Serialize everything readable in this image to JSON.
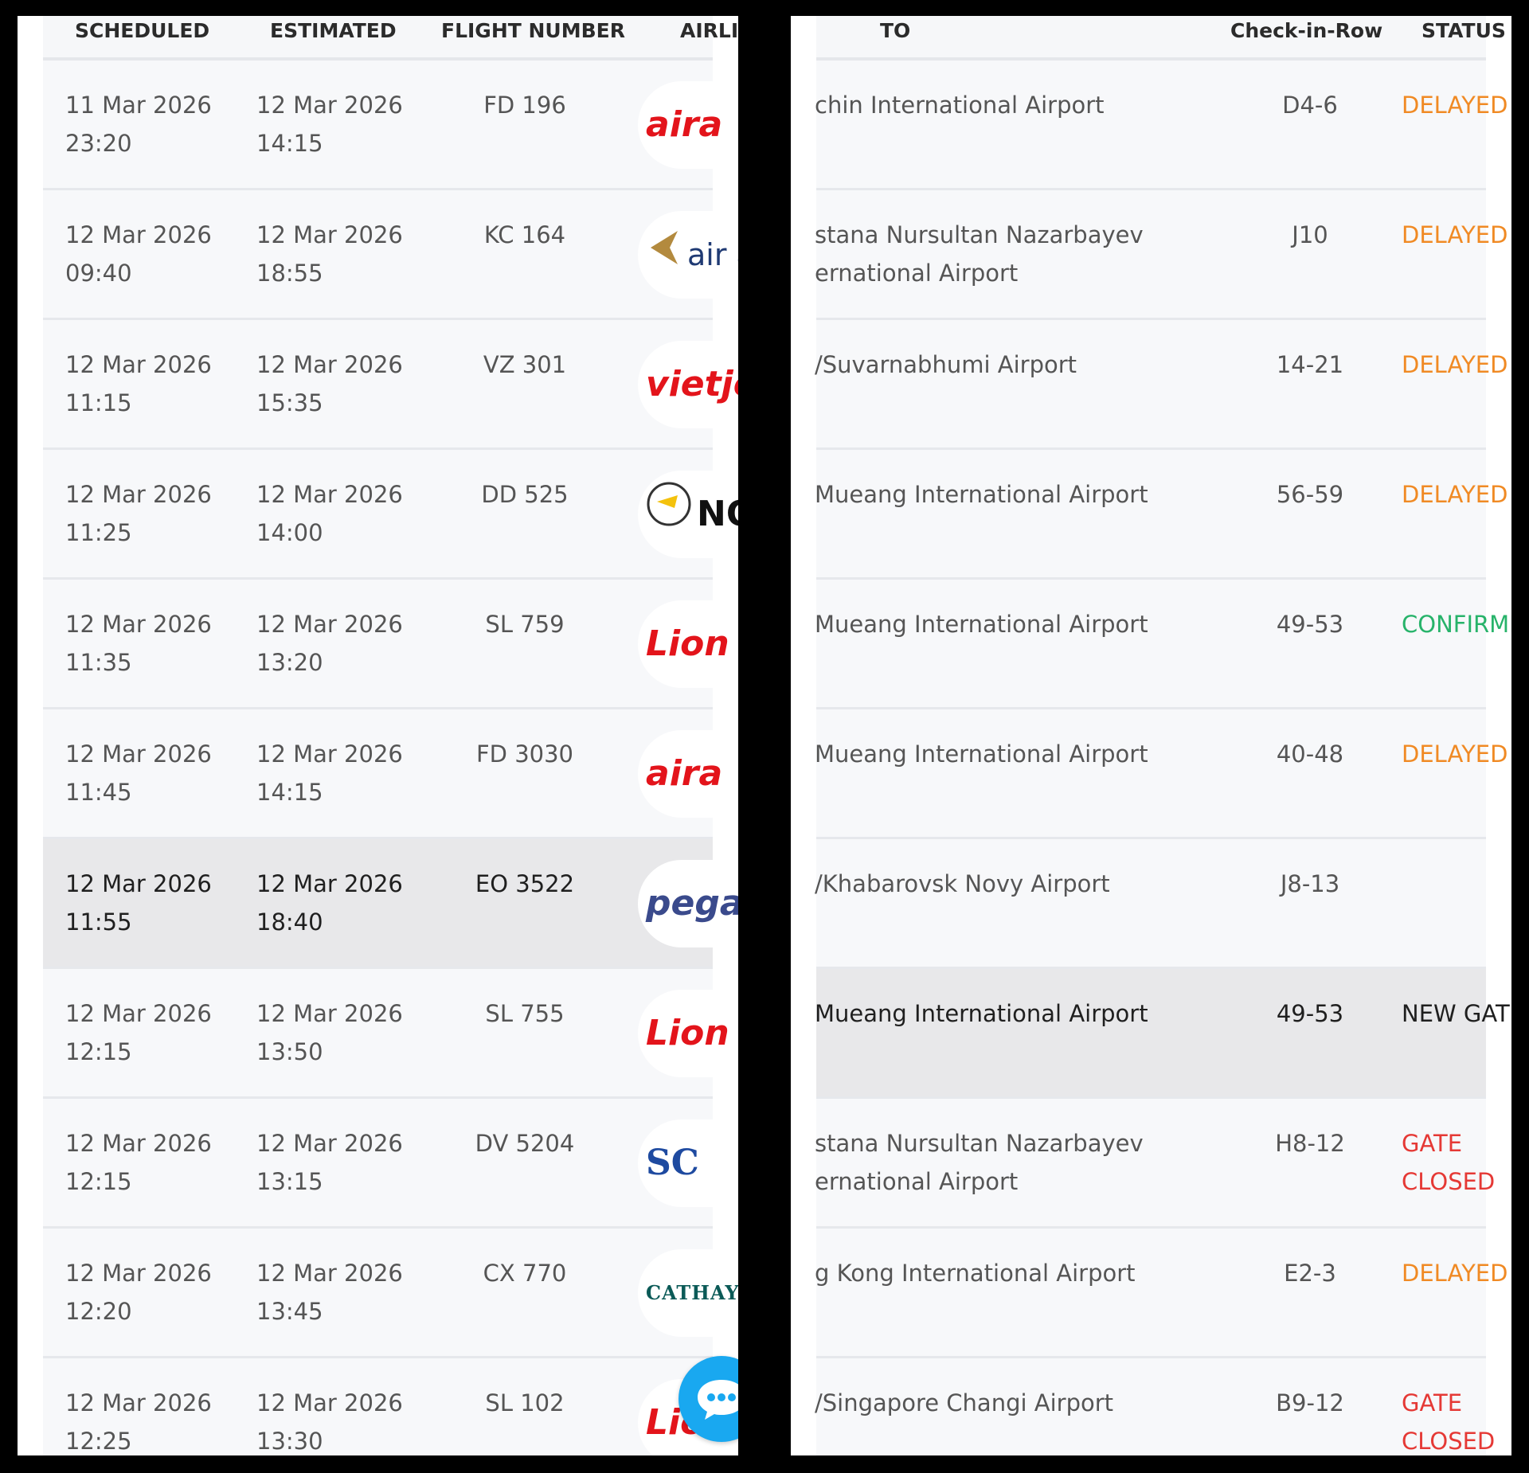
{
  "left_header": {
    "scheduled": "SCHEDULED",
    "estimated": "ESTIMATED",
    "flight_number": "FLIGHT NUMBER",
    "airline": "AIRLI"
  },
  "right_header": {
    "to": "TO",
    "check_in_row": "Check-in-Row",
    "status": "STATUS"
  },
  "flights": [
    {
      "sched_date": "11 Mar 2026",
      "sched_time": "23:20",
      "est_date": "12 Mar 2026",
      "est_time": "14:15",
      "flight": "FD 196",
      "logo_text": "aira",
      "logo_color": "#e3141b",
      "to_line1": "chin International Airport",
      "to_line2": "",
      "row": "D4-6",
      "status": "DELAYED",
      "status_type": "delayed"
    },
    {
      "sched_date": "12 Mar 2026",
      "sched_time": "09:40",
      "est_date": "12 Mar 2026",
      "est_time": "18:55",
      "flight": "KC 164",
      "logo_text": "air a",
      "logo_color": "#1f3a73",
      "to_line1": "stana Nursultan Nazarbayev",
      "to_line2": "ernational Airport",
      "row": "J10",
      "status": "DELAYED",
      "status_type": "delayed"
    },
    {
      "sched_date": "12 Mar 2026",
      "sched_time": "11:15",
      "est_date": "12 Mar 2026",
      "est_time": "15:35",
      "flight": "VZ 301",
      "logo_text": "vietjetA",
      "logo_color": "#e3141b",
      "to_line1": "/Suvarnabhumi Airport",
      "to_line2": "",
      "row": "14-21",
      "status": "DELAYED",
      "status_type": "delayed"
    },
    {
      "sched_date": "12 Mar 2026",
      "sched_time": "11:25",
      "est_date": "12 Mar 2026",
      "est_time": "14:00",
      "flight": "DD 525",
      "logo_text": "NO",
      "logo_color": "#111111",
      "to_line1": "Mueang International Airport",
      "to_line2": "",
      "row": "56-59",
      "status": "DELAYED",
      "status_type": "delayed"
    },
    {
      "sched_date": "12 Mar 2026",
      "sched_time": "11:35",
      "est_date": "12 Mar 2026",
      "est_time": "13:20",
      "flight": "SL 759",
      "logo_text": "Lion",
      "logo_color": "#e3141b",
      "to_line1": "Mueang International Airport",
      "to_line2": "",
      "row": "49-53",
      "status": "CONFIRME",
      "status_type": "confirmed"
    },
    {
      "sched_date": "12 Mar 2026",
      "sched_time": "11:45",
      "est_date": "12 Mar 2026",
      "est_time": "14:15",
      "flight": "FD 3030",
      "logo_text": "aira",
      "logo_color": "#e3141b",
      "to_line1": "Mueang International Airport",
      "to_line2": "",
      "row": "40-48",
      "status": "DELAYED",
      "status_type": "delayed"
    },
    {
      "sched_date": "12 Mar 2026",
      "sched_time": "11:55",
      "est_date": "12 Mar 2026",
      "est_time": "18:40",
      "flight": "EO 3522",
      "logo_text": "pegas",
      "logo_color": "#3a4a8c",
      "to_line1": "/Khabarovsk Novy Airport",
      "to_line2": "",
      "row": "J8-13",
      "status": "",
      "status_type": "none"
    },
    {
      "sched_date": "12 Mar 2026",
      "sched_time": "12:15",
      "est_date": "12 Mar 2026",
      "est_time": "13:50",
      "flight": "SL 755",
      "logo_text": "Lion",
      "logo_color": "#e3141b",
      "to_line1": "Mueang International Airport",
      "to_line2": "",
      "row": "49-53",
      "status": "NEW GATE",
      "status_type": "newgate"
    },
    {
      "sched_date": "12 Mar 2026",
      "sched_time": "12:15",
      "est_date": "12 Mar 2026",
      "est_time": "13:15",
      "flight": "DV 5204",
      "logo_text": "SC",
      "logo_color": "#1e4aa0",
      "to_line1": "stana Nursultan Nazarbayev",
      "to_line2": "ernational Airport",
      "row": "H8-12",
      "status": "GATE CLOSED",
      "status_type": "gate"
    },
    {
      "sched_date": "12 Mar 2026",
      "sched_time": "12:20",
      "est_date": "12 Mar 2026",
      "est_time": "13:45",
      "flight": "CX 770",
      "logo_text": "CATHAY",
      "logo_color": "#0b5a57",
      "to_line1": "g Kong International Airport",
      "to_line2": "",
      "row": "E2-3",
      "status": "DELAYED",
      "status_type": "delayed"
    },
    {
      "sched_date": "12 Mar 2026",
      "sched_time": "12:25",
      "est_date": "12 Mar 2026",
      "est_time": "13:30",
      "flight": "SL 102",
      "logo_text": "Lion",
      "logo_color": "#e3141b",
      "to_line1": "/Singapore Changi Airport",
      "to_line2": "",
      "row": "B9-12",
      "status": "GATE CLOSED",
      "status_type": "gate"
    }
  ],
  "selected_left_index": 6,
  "selected_right_index": 7,
  "colors": {
    "delayed": "#f08a24",
    "confirmed": "#27b36a",
    "gate_closed": "#e53935",
    "chat_button": "#19a8f0"
  },
  "icons": {
    "chat": "chat-bubble-icon"
  }
}
